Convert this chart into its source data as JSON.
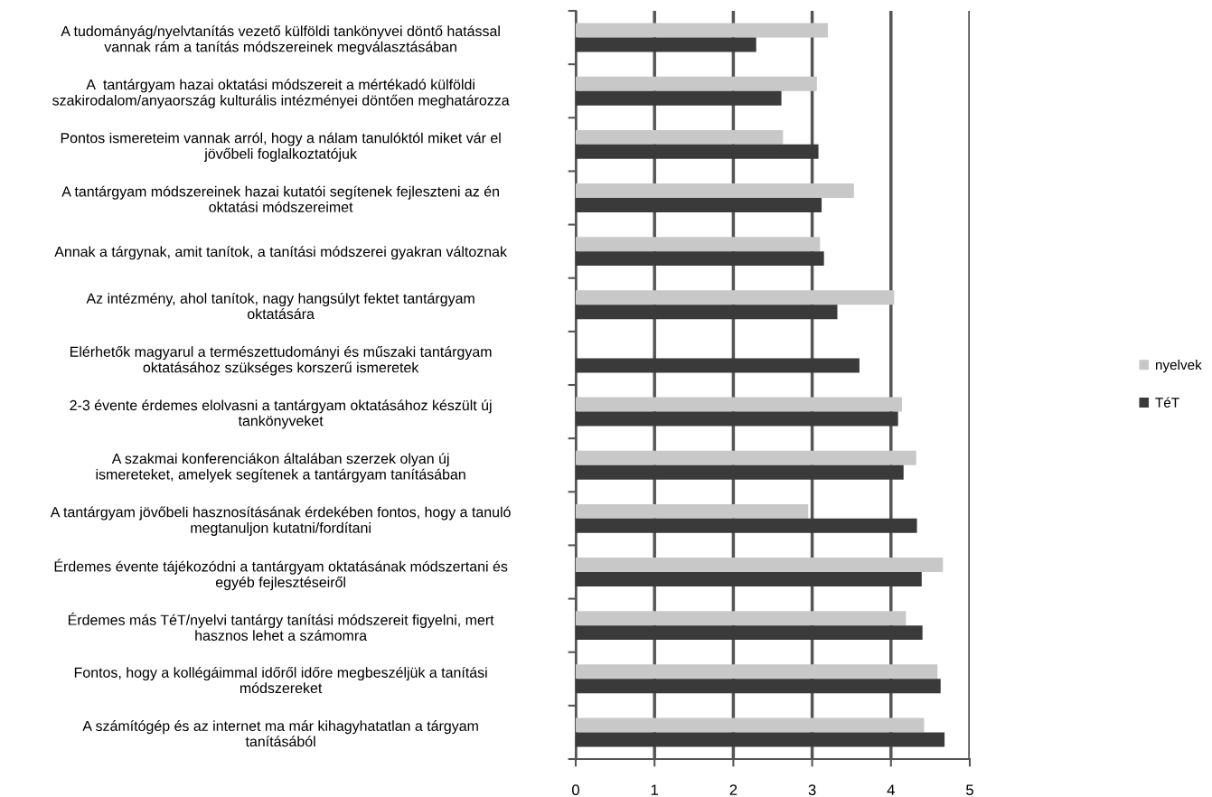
{
  "chart_data": {
    "type": "bar",
    "orientation": "horizontal",
    "categories": [
      "A tudományág/nyelvtanítás vezető külföldi tankönyvei döntő hatással\nvannak rám a tanítás módszereinek megválasztásában",
      "A  tantárgyam hazai oktatási módszereit a mértékadó külföldi\nszakirodalom/anyaország kulturális intézményei döntően meghatározza",
      "Pontos ismereteim vannak arról, hogy a nálam tanulóktól miket vár el\njövőbeli foglalkoztatójuk",
      "A tantárgyam módszereinek hazai kutatói segítenek fejleszteni az én\noktatási módszereimet",
      "Annak a tárgynak, amit tanítok, a tanítási módszerei gyakran változnak",
      "Az intézmény, ahol tanítok, nagy hangsúlyt fektet tantárgyam\noktatására",
      "Elérhetők magyarul a természettudományi és műszaki tantárgyam\noktatásához szükséges korszerű ismeretek",
      "2-3 évente érdemes elolvasni a tantárgyam oktatásához készült új\ntankönyveket",
      "A szakmai konferenciákon általában szerzek olyan új\nismereteket, amelyek segítenek a tantárgyam tanításában",
      "A tantárgyam jövőbeli hasznosításának érdekében fontos, hogy a tanuló\nmegtanuljon kutatni/fordítani",
      "Érdemes évente tájékozódni a tantárgyam oktatásának módszertani és\negyéb fejlesztéseiről",
      "Érdemes más TéT/nyelvi tantárgy tanítási módszereit figyelni, mert\nhasznos lehet a számomra",
      "Fontos, hogy a kollégáimmal időről időre megbeszéljük a tanítási\nmódszereket",
      "A számítógép és az internet ma már kihagyhatatlan a tárgyam\ntanításából"
    ],
    "series": [
      {
        "name": "nyelvek",
        "color": "#c8c8c8",
        "values": [
          3.2,
          3.06,
          2.63,
          3.53,
          3.1,
          4.04,
          null,
          4.14,
          4.32,
          2.95,
          4.66,
          4.19,
          4.59,
          4.42
        ]
      },
      {
        "name": "TéT",
        "color": "#3a3a3a",
        "values": [
          2.29,
          2.61,
          3.08,
          3.12,
          3.15,
          3.32,
          3.6,
          4.09,
          4.16,
          4.33,
          4.39,
          4.4,
          4.63,
          4.68
        ]
      }
    ],
    "xlim": [
      0,
      5
    ],
    "xticks": [
      0,
      1,
      2,
      3,
      4,
      5
    ],
    "grid": "x",
    "legend": "right"
  }
}
